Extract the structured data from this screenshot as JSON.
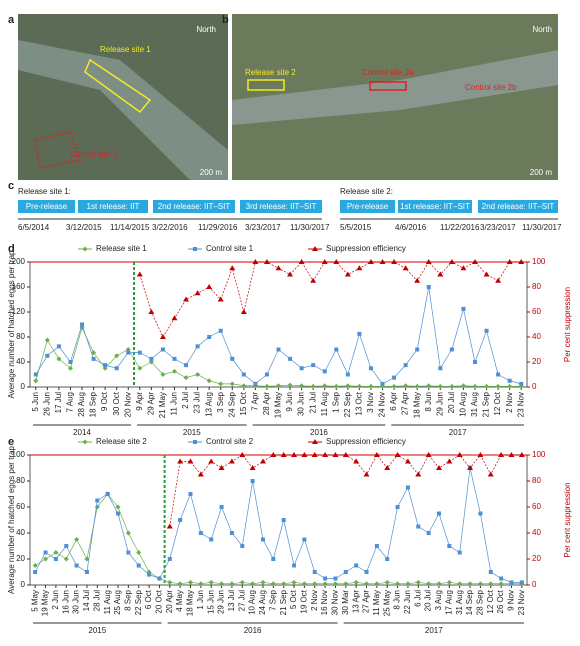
{
  "maps": [
    {
      "letter": "a",
      "north": "North",
      "labels": [
        "Release site 1",
        "Control site 1"
      ],
      "scale": "200 m"
    },
    {
      "letter": "b",
      "north": "North",
      "labels": [
        "Release site 2",
        "Control site 2a",
        "Control site 2b"
      ],
      "scale": "200 m"
    }
  ],
  "timelines": {
    "letter": "c",
    "sites": [
      {
        "title": "Release site 1:",
        "phases": [
          "Pre-release",
          "1st release: IIT",
          "2nd release: IIT–SIT",
          "3rd release: IIT–SIT"
        ],
        "dates": [
          "6/5/2014",
          "3/12/2015",
          "11/14/2015",
          "3/22/2016",
          "11/29/2016",
          "3/23/2017",
          "11/30/2017"
        ]
      },
      {
        "title": "Release site 2:",
        "phases": [
          "Pre-release",
          "1st release: IIT–SIT",
          "2nd release: IIT–SIT"
        ],
        "dates": [
          "5/5/2015",
          "4/6/2016",
          "11/22/2016",
          "3/23/2017",
          "11/30/2017"
        ]
      }
    ]
  },
  "chart_data": [
    {
      "type": "line",
      "letter": "d",
      "y_label": "Average number of hatched eggs per trap",
      "y2_label": "Per cent suppression",
      "categories": [
        "5 Jun",
        "26 Jun",
        "17 Jul",
        "7 Aug",
        "28 Aug",
        "18 Sep",
        "9 Oct",
        "30 Oct",
        "20 Nov",
        "9 Apr",
        "29 Apr",
        "21 May",
        "11 Jun",
        "2 Jul",
        "23 Jul",
        "13 Aug",
        "3 Sep",
        "24 Sep",
        "15 Oct",
        "7 Apr",
        "28 Apr",
        "19 May",
        "9 Jun",
        "30 Jun",
        "21 Jul",
        "11 Aug",
        "1 Sep",
        "22 Sep",
        "13 Oct",
        "3 Nov",
        "24 Nov",
        "6 Apr",
        "27 Apr",
        "18 May",
        "8 Jun",
        "29 Jun",
        "20 Jul",
        "10 Aug",
        "31 Aug",
        "21 Sep",
        "12 Oct",
        "2 Nov",
        "23 Nov"
      ],
      "x_groups": [
        {
          "label": "2014",
          "span": 9
        },
        {
          "label": "2015",
          "span": 10
        },
        {
          "label": "2016",
          "span": 12
        },
        {
          "label": "2017",
          "span": 12
        }
      ],
      "ylim": [
        0,
        200
      ],
      "yticks": [
        0,
        40,
        80,
        120,
        160,
        200
      ],
      "y2lim": [
        0,
        100
      ],
      "y2ticks": [
        0,
        20,
        40,
        60,
        80,
        100
      ],
      "series": [
        {
          "name": "Release site 1",
          "color": "#6ab04c",
          "marker": "diamond",
          "values": [
            10,
            75,
            45,
            30,
            95,
            55,
            30,
            50,
            60,
            30,
            40,
            20,
            25,
            15,
            20,
            10,
            5,
            5,
            2,
            2,
            1,
            2,
            3,
            2,
            1,
            2,
            1,
            2,
            1,
            1,
            1,
            1,
            2,
            1,
            2,
            1,
            1,
            2,
            1,
            1,
            1,
            1,
            1
          ]
        },
        {
          "name": "Control site 1",
          "color": "#4f8fd6",
          "marker": "square",
          "values": [
            20,
            50,
            65,
            40,
            100,
            45,
            35,
            30,
            55,
            55,
            45,
            60,
            45,
            35,
            65,
            80,
            90,
            45,
            20,
            5,
            20,
            60,
            45,
            30,
            35,
            25,
            60,
            20,
            85,
            30,
            5,
            15,
            35,
            60,
            160,
            30,
            60,
            125,
            40,
            90,
            20,
            10,
            5
          ]
        },
        {
          "name": "Suppression efficiency",
          "color": "#c00000",
          "marker": "triangle",
          "axis": "y2",
          "values": [
            null,
            null,
            null,
            null,
            null,
            null,
            null,
            null,
            null,
            90,
            60,
            40,
            55,
            70,
            75,
            80,
            70,
            95,
            60,
            100,
            100,
            95,
            90,
            100,
            85,
            100,
            100,
            90,
            95,
            100,
            100,
            100,
            95,
            85,
            100,
            90,
            100,
            95,
            100,
            90,
            85,
            100,
            100
          ]
        }
      ]
    },
    {
      "type": "line",
      "letter": "e",
      "y_label": "Average number of hatched eggs per trap",
      "y2_label": "Per cent suppression",
      "categories": [
        "5 May",
        "19 May",
        "2 Jun",
        "16 Jun",
        "30 Jun",
        "14 Jul",
        "28 Jul",
        "11 Aug",
        "25 Aug",
        "8 Sep",
        "22 Sep",
        "6 Oct",
        "20 Oct",
        "20 Apr",
        "4 May",
        "18 May",
        "1 Jun",
        "15 Jun",
        "29 Jun",
        "13 Jul",
        "27 Jul",
        "10 Aug",
        "24 Aug",
        "7 Sep",
        "21 Sep",
        "5 Oct",
        "19 Oct",
        "2 Nov",
        "16 Nov",
        "30 Nov",
        "30 Mar",
        "13 Apr",
        "27 Apr",
        "11 May",
        "25 May",
        "8 Jun",
        "22 Jun",
        "6 Jul",
        "20 Jul",
        "3 Aug",
        "17 Aug",
        "31 Aug",
        "14 Sep",
        "28 Sep",
        "12 Oct",
        "26 Oct",
        "9 Nov",
        "23 Nov"
      ],
      "x_groups": [
        {
          "label": "2015",
          "span": 13
        },
        {
          "label": "2016",
          "span": 17
        },
        {
          "label": "2017",
          "span": 18
        }
      ],
      "ylim": [
        0,
        100
      ],
      "yticks": [
        0,
        20,
        40,
        60,
        80,
        100
      ],
      "y2lim": [
        0,
        100
      ],
      "y2ticks": [
        0,
        20,
        40,
        60,
        80,
        100
      ],
      "series": [
        {
          "name": "Release site 2",
          "color": "#6ab04c",
          "marker": "diamond",
          "values": [
            15,
            20,
            25,
            20,
            35,
            20,
            60,
            70,
            60,
            40,
            25,
            10,
            5,
            2,
            1,
            2,
            1,
            2,
            1,
            1,
            2,
            1,
            2,
            1,
            1,
            2,
            1,
            1,
            1,
            1,
            1,
            2,
            1,
            1,
            2,
            1,
            1,
            2,
            1,
            1,
            2,
            1,
            1,
            1,
            1,
            1,
            1,
            1
          ]
        },
        {
          "name": "Control site 2",
          "color": "#4f8fd6",
          "marker": "square",
          "values": [
            10,
            25,
            20,
            30,
            15,
            10,
            65,
            70,
            55,
            25,
            15,
            8,
            5,
            20,
            50,
            70,
            40,
            35,
            60,
            40,
            30,
            80,
            35,
            20,
            50,
            15,
            35,
            10,
            5,
            5,
            10,
            15,
            10,
            30,
            20,
            60,
            75,
            45,
            40,
            55,
            30,
            25,
            90,
            55,
            10,
            5,
            2,
            2
          ]
        },
        {
          "name": "Suppression efficiency",
          "color": "#c00000",
          "marker": "triangle",
          "axis": "y2",
          "values": [
            null,
            null,
            null,
            null,
            null,
            null,
            null,
            null,
            null,
            null,
            null,
            null,
            null,
            45,
            95,
            95,
            85,
            95,
            90,
            95,
            100,
            90,
            95,
            100,
            100,
            100,
            100,
            100,
            100,
            100,
            100,
            95,
            85,
            100,
            90,
            100,
            95,
            85,
            100,
            90,
            95,
            100,
            90,
            100,
            85,
            100,
            100,
            100
          ]
        }
      ]
    }
  ]
}
